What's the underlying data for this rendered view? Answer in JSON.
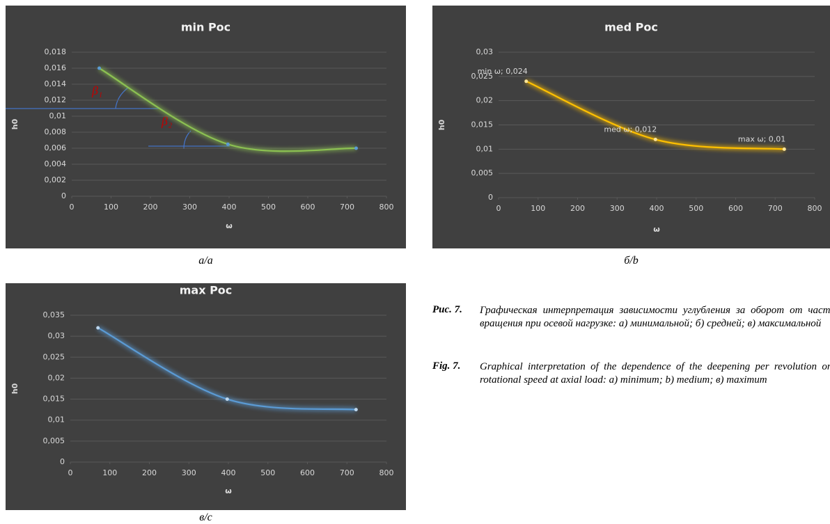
{
  "chart_data": [
    {
      "type": "line",
      "title": "min Poc",
      "x_label": "ω",
      "y_label": "h0",
      "x": [
        70,
        397,
        723
      ],
      "series": [
        {
          "color": "#8cc152",
          "point_color": "#5b9bd5",
          "values": [
            0.016,
            0.0065,
            0.006
          ]
        }
      ],
      "xlim": [
        0,
        800
      ],
      "xticks": [
        0,
        100,
        200,
        300,
        400,
        500,
        600,
        700,
        800
      ],
      "ylim": [
        0,
        0.018
      ],
      "yticks": [
        0,
        {
          "value": 0.002,
          "label": "0,002"
        },
        {
          "value": 0.004,
          "label": "0,004"
        },
        {
          "value": 0.006,
          "label": "0,006"
        },
        {
          "value": 0.008,
          "label": "0,008"
        },
        {
          "value": 0.01,
          "label": "0,01"
        },
        {
          "value": 0.012,
          "label": "0,012"
        },
        {
          "value": 0.014,
          "label": "0,014"
        },
        {
          "value": 0.016,
          "label": "0,016"
        },
        {
          "value": 0.018,
          "label": "0,018"
        }
      ],
      "grid": true,
      "annotations": [
        "β₁",
        "β₂"
      ]
    },
    {
      "type": "line",
      "title": "med Poc",
      "x_label": "ω",
      "y_label": "h0",
      "x": [
        70,
        397,
        723
      ],
      "series": [
        {
          "color": "#ffc000",
          "point_color": "#ffe699",
          "values": [
            0.024,
            0.012,
            0.01
          ],
          "value_labels": [
            "min ω; 0,024",
            "med ω; 0,012",
            "max ω; 0,01"
          ]
        }
      ],
      "xlim": [
        0,
        800
      ],
      "xticks": [
        0,
        100,
        200,
        300,
        400,
        500,
        600,
        700,
        800
      ],
      "ylim": [
        0,
        0.03
      ],
      "yticks": [
        0,
        {
          "value": 0.005,
          "label": "0,005"
        },
        {
          "value": 0.01,
          "label": "0,01"
        },
        {
          "value": 0.015,
          "label": "0,015"
        },
        {
          "value": 0.02,
          "label": "0,02"
        },
        {
          "value": 0.025,
          "label": "0,025"
        },
        {
          "value": 0.03,
          "label": "0,03"
        }
      ],
      "grid": true
    },
    {
      "type": "line",
      "title": "max Poc",
      "x_label": "ω",
      "y_label": "h0",
      "x": [
        70,
        397,
        723
      ],
      "series": [
        {
          "color": "#5b9bd5",
          "point_color": "#bdd7ee",
          "values": [
            0.032,
            0.015,
            0.0125
          ]
        }
      ],
      "xlim": [
        0,
        800
      ],
      "xticks": [
        0,
        100,
        200,
        300,
        400,
        500,
        600,
        700,
        800
      ],
      "ylim": [
        0,
        0.035
      ],
      "yticks": [
        0,
        {
          "value": 0.005,
          "label": "0,005"
        },
        {
          "value": 0.01,
          "label": "0,01"
        },
        {
          "value": 0.015,
          "label": "0,015"
        },
        {
          "value": 0.02,
          "label": "0,02"
        },
        {
          "value": 0.025,
          "label": "0,025"
        },
        {
          "value": 0.03,
          "label": "0,03"
        },
        {
          "value": 0.035,
          "label": "0,035"
        }
      ],
      "grid": true
    }
  ],
  "panel_labels": [
    "a/a",
    "б/b",
    "в/c"
  ],
  "caption": {
    "ru_label": "Рис. 7.",
    "ru_text": "Графическая интерпретация зависимости углубления за оборот от частоты вращения при осевой нагрузке: а) минимальной; б) средней; в) максимальной",
    "en_label": "Fig. 7.",
    "en_text": "Graphical interpretation of the dependence of the deepening per revolution on the rotational speed at axial load: a) minimum; b) medium; в) maximum"
  }
}
